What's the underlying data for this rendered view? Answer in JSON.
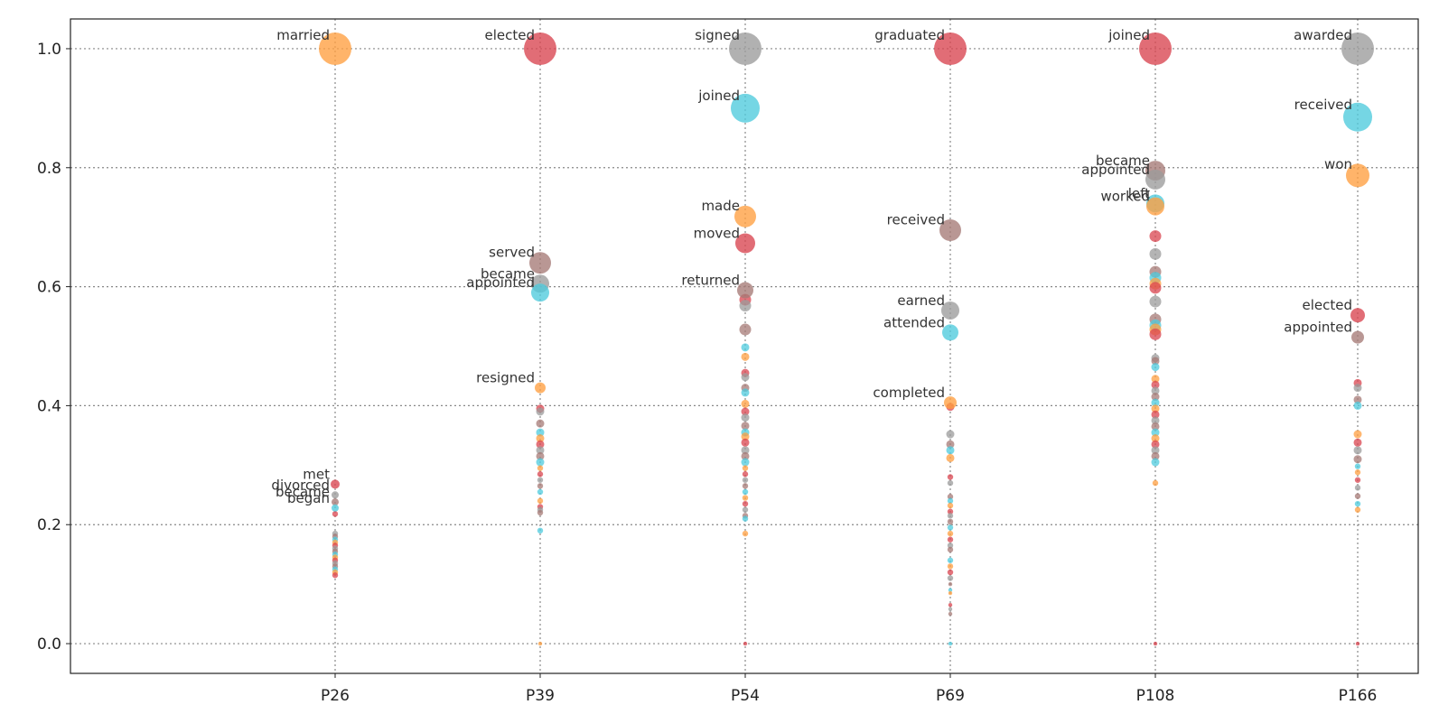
{
  "chart_data": {
    "type": "scatter",
    "categories": [
      "P26",
      "P39",
      "P54",
      "P69",
      "P108",
      "P166"
    ],
    "ylim": [
      -0.05,
      1.05
    ],
    "yticks": [
      0.0,
      0.2,
      0.4,
      0.6,
      0.8,
      1.0
    ],
    "ytick_labels": [
      "0.0",
      "0.2",
      "0.4",
      "0.6",
      "0.8",
      "1.0"
    ],
    "grid": true,
    "palette": {
      "orange": "#ff9f40",
      "red": "#d9444f",
      "gray": "#9b9b9b",
      "cyan": "#4ecbdd",
      "brown": "#a57a76"
    },
    "columns": [
      {
        "category": "P26",
        "labeled": [
          {
            "label": "married",
            "y": 1.0,
            "color": "orange",
            "size": 18
          },
          {
            "label": "met",
            "y": 0.268,
            "color": "red",
            "size": 5
          },
          {
            "label": "divorced",
            "y": 0.25,
            "color": "gray",
            "size": 4
          },
          {
            "label": "became",
            "y": 0.238,
            "color": "brown",
            "size": 4
          },
          {
            "label": "began",
            "y": 0.228,
            "color": "cyan",
            "size": 4
          }
        ],
        "minor": [
          0.218,
          0.185,
          0.18,
          0.175,
          0.17,
          0.165,
          0.16,
          0.155,
          0.15,
          0.145,
          0.14,
          0.135,
          0.13,
          0.125,
          0.12,
          0.115
        ]
      },
      {
        "category": "P39",
        "labeled": [
          {
            "label": "elected",
            "y": 1.0,
            "color": "red",
            "size": 18
          },
          {
            "label": "served",
            "y": 0.64,
            "color": "brown",
            "size": 12
          },
          {
            "label": "became",
            "y": 0.605,
            "color": "gray",
            "size": 10
          },
          {
            "label": "appointed",
            "y": 0.59,
            "color": "cyan",
            "size": 10
          },
          {
            "label": "resigned",
            "y": 0.43,
            "color": "orange",
            "size": 6
          }
        ],
        "minor": [
          0.395,
          0.39,
          0.37,
          0.355,
          0.345,
          0.335,
          0.325,
          0.315,
          0.305,
          0.295,
          0.285,
          0.275,
          0.265,
          0.255,
          0.24,
          0.23,
          0.225,
          0.22,
          0.19,
          0.0
        ]
      },
      {
        "category": "P54",
        "labeled": [
          {
            "label": "signed",
            "y": 1.0,
            "color": "gray",
            "size": 18
          },
          {
            "label": "joined",
            "y": 0.9,
            "color": "cyan",
            "size": 16
          },
          {
            "label": "made",
            "y": 0.718,
            "color": "orange",
            "size": 12
          },
          {
            "label": "moved",
            "y": 0.673,
            "color": "red",
            "size": 11
          },
          {
            "label": "returned",
            "y": 0.594,
            "color": "brown",
            "size": 9
          }
        ],
        "minor": [
          0.578,
          0.568,
          0.528,
          0.498,
          0.482,
          0.455,
          0.448,
          0.43,
          0.422,
          0.403,
          0.39,
          0.38,
          0.366,
          0.355,
          0.348,
          0.338,
          0.325,
          0.315,
          0.305,
          0.295,
          0.285,
          0.275,
          0.265,
          0.255,
          0.245,
          0.235,
          0.225,
          0.215,
          0.21,
          0.185,
          0.0
        ]
      },
      {
        "category": "P69",
        "labeled": [
          {
            "label": "graduated",
            "y": 1.0,
            "color": "red",
            "size": 18
          },
          {
            "label": "received",
            "y": 0.695,
            "color": "brown",
            "size": 12
          },
          {
            "label": "earned",
            "y": 0.56,
            "color": "gray",
            "size": 10
          },
          {
            "label": "attended",
            "y": 0.523,
            "color": "cyan",
            "size": 9
          },
          {
            "label": "completed",
            "y": 0.405,
            "color": "orange",
            "size": 7
          }
        ],
        "minor": [
          0.398,
          0.352,
          0.335,
          0.325,
          0.312,
          0.28,
          0.27,
          0.247,
          0.24,
          0.232,
          0.222,
          0.215,
          0.205,
          0.195,
          0.185,
          0.175,
          0.165,
          0.158,
          0.14,
          0.13,
          0.12,
          0.11,
          0.1,
          0.09,
          0.085,
          0.065,
          0.058,
          0.05,
          0.0
        ]
      },
      {
        "category": "P108",
        "labeled": [
          {
            "label": "joined",
            "y": 1.0,
            "color": "red",
            "size": 18
          },
          {
            "label": "became",
            "y": 0.795,
            "color": "brown",
            "size": 11
          },
          {
            "label": "appointed",
            "y": 0.78,
            "color": "gray",
            "size": 11
          },
          {
            "label": "left",
            "y": 0.74,
            "color": "cyan",
            "size": 10
          },
          {
            "label": "worked",
            "y": 0.735,
            "color": "orange",
            "size": 10
          }
        ],
        "minor": [
          0.685,
          0.655,
          0.625,
          0.615,
          0.605,
          0.598,
          0.575,
          0.545,
          0.535,
          0.528,
          0.52,
          0.48,
          0.475,
          0.465,
          0.445,
          0.435,
          0.425,
          0.415,
          0.405,
          0.395,
          0.385,
          0.375,
          0.365,
          0.355,
          0.345,
          0.335,
          0.325,
          0.315,
          0.305,
          0.27,
          0.0
        ]
      },
      {
        "category": "P166",
        "labeled": [
          {
            "label": "awarded",
            "y": 1.0,
            "color": "gray",
            "size": 18
          },
          {
            "label": "received",
            "y": 0.885,
            "color": "cyan",
            "size": 16
          },
          {
            "label": "won",
            "y": 0.787,
            "color": "orange",
            "size": 13
          },
          {
            "label": "elected",
            "y": 0.552,
            "color": "red",
            "size": 8
          },
          {
            "label": "appointed",
            "y": 0.515,
            "color": "brown",
            "size": 7
          }
        ],
        "minor": [
          0.438,
          0.43,
          0.41,
          0.4,
          0.352,
          0.338,
          0.325,
          0.31,
          0.298,
          0.288,
          0.275,
          0.262,
          0.248,
          0.235,
          0.225,
          0.0
        ]
      }
    ]
  }
}
